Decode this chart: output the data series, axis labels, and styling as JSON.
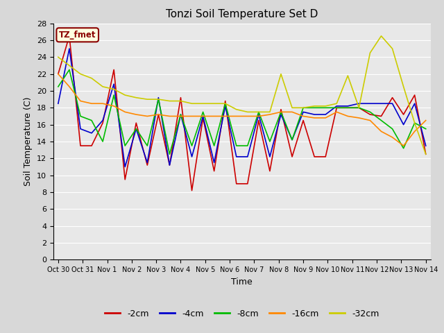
{
  "title": "Tonzi Soil Temperature Set D",
  "xlabel": "Time",
  "ylabel": "Soil Temperature (C)",
  "annotation": "TZ_fmet",
  "ylim": [
    0,
    28
  ],
  "yticks": [
    0,
    2,
    4,
    6,
    8,
    10,
    12,
    14,
    16,
    18,
    20,
    22,
    24,
    26,
    28
  ],
  "xtick_labels": [
    "Oct 30",
    "Oct 31",
    "Nov 1",
    "Nov 2",
    "Nov 3",
    "Nov 4",
    "Nov 5",
    "Nov 6",
    "Nov 7",
    "Nov 8",
    "Nov 9",
    "Nov 10",
    "Nov 11",
    "Nov 12",
    "Nov 13",
    "Nov 14"
  ],
  "colors": {
    "-2cm": "#cc0000",
    "-4cm": "#0000cc",
    "-8cm": "#00bb00",
    "-16cm": "#ff8800",
    "-32cm": "#cccc00"
  },
  "series": {
    "-2cm": [
      22.0,
      26.5,
      13.5,
      13.5,
      16.2,
      22.5,
      9.5,
      16.2,
      11.2,
      17.2,
      11.2,
      19.2,
      8.2,
      16.8,
      10.5,
      18.8,
      9.0,
      9.0,
      16.5,
      10.5,
      17.8,
      12.2,
      16.5,
      12.2,
      12.2,
      18.0,
      18.0,
      18.0,
      17.2,
      17.0,
      19.2,
      17.2,
      19.5,
      12.5
    ],
    "-4cm": [
      18.5,
      25.0,
      15.5,
      15.0,
      16.5,
      20.8,
      11.0,
      15.5,
      11.5,
      19.2,
      11.2,
      17.2,
      12.2,
      17.0,
      11.5,
      18.2,
      12.2,
      12.2,
      17.2,
      12.2,
      17.2,
      14.2,
      17.5,
      17.2,
      17.2,
      18.2,
      18.2,
      18.5,
      18.5,
      18.5,
      18.5,
      16.0,
      18.5,
      13.5
    ],
    "-8cm": [
      20.5,
      22.5,
      17.0,
      16.5,
      14.0,
      19.5,
      13.5,
      15.5,
      13.5,
      19.0,
      12.5,
      17.2,
      13.5,
      17.5,
      13.5,
      18.5,
      13.5,
      13.5,
      17.5,
      14.0,
      17.5,
      14.2,
      18.0,
      18.0,
      18.0,
      18.0,
      18.0,
      18.0,
      17.5,
      16.5,
      15.5,
      13.2,
      16.2,
      15.5
    ],
    "-16cm": [
      22.0,
      20.5,
      18.8,
      18.5,
      18.5,
      18.2,
      17.5,
      17.2,
      17.0,
      17.2,
      17.0,
      17.0,
      17.0,
      17.0,
      17.0,
      17.0,
      17.0,
      17.0,
      17.0,
      17.2,
      17.5,
      17.5,
      17.0,
      16.8,
      16.8,
      17.5,
      17.0,
      16.8,
      16.5,
      15.2,
      14.5,
      13.5,
      15.2,
      16.5
    ],
    "-32cm": [
      24.0,
      23.0,
      22.0,
      21.5,
      20.5,
      20.2,
      19.5,
      19.2,
      19.0,
      19.0,
      18.8,
      18.8,
      18.5,
      18.5,
      18.5,
      18.5,
      17.8,
      17.5,
      17.5,
      17.5,
      22.0,
      18.0,
      18.0,
      18.2,
      18.2,
      18.5,
      21.8,
      18.0,
      24.5,
      26.5,
      25.0,
      20.5,
      16.2,
      12.5
    ]
  },
  "background_color": "#e8e8e8",
  "grid_color": "#ffffff",
  "legend_labels": [
    "-2cm",
    "-4cm",
    "-8cm",
    "-16cm",
    "-32cm"
  ],
  "figsize": [
    6.4,
    4.8
  ],
  "dpi": 100
}
